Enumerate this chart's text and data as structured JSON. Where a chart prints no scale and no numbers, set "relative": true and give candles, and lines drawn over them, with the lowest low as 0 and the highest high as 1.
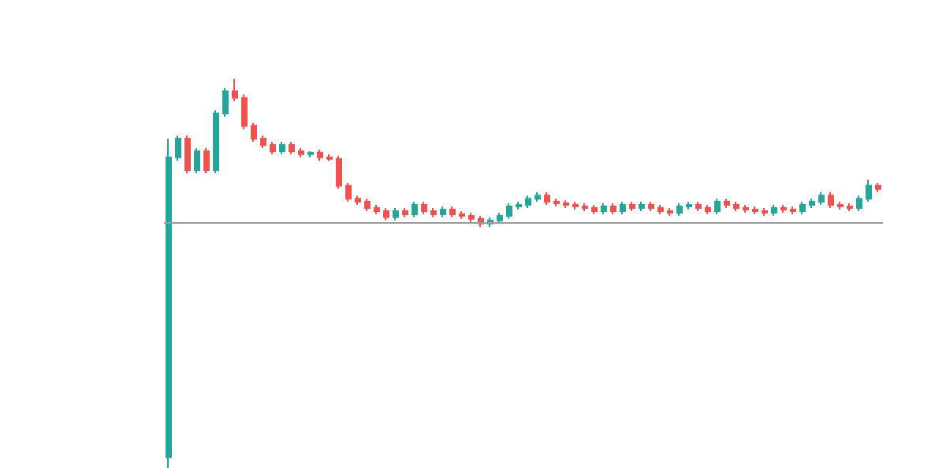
{
  "chart_data": {
    "type": "candlestick",
    "relative": true,
    "categories": [
      null,
      null,
      null,
      null,
      null,
      null,
      null,
      null,
      null,
      null,
      null,
      null,
      null,
      null,
      null,
      null,
      null,
      null,
      null,
      null,
      null,
      null,
      null,
      null,
      null,
      null,
      null,
      null,
      null,
      null,
      null,
      null,
      null,
      null,
      null,
      null,
      null,
      null,
      null,
      null,
      null,
      null,
      null,
      null,
      null,
      null,
      null,
      null,
      null,
      null,
      null,
      null,
      null,
      null,
      null,
      null,
      null,
      null,
      null,
      null,
      null,
      null,
      null,
      null,
      null,
      null,
      null,
      null,
      null,
      null,
      null,
      null,
      null,
      null,
      null,
      null
    ],
    "ohlc": [
      [
        0.028,
        0.846,
        0,
        0.798
      ],
      [
        0.798,
        0.854,
        0.789,
        0.846
      ],
      [
        0.846,
        0.854,
        0.757,
        0.765
      ],
      [
        0.765,
        0.822,
        0.757,
        0.814
      ],
      [
        0.814,
        0.822,
        0.757,
        0.765
      ],
      [
        0.765,
        0.919,
        0.757,
        0.911
      ],
      [
        0.911,
        0.976,
        0.903,
        0.968
      ],
      [
        0.968,
        1.0,
        0.943,
        0.951
      ],
      [
        0.951,
        0.96,
        0.87,
        0.879
      ],
      [
        0.879,
        0.887,
        0.838,
        0.846
      ],
      [
        0.846,
        0.854,
        0.822,
        0.83
      ],
      [
        0.83,
        0.838,
        0.806,
        0.814
      ],
      [
        0.814,
        0.838,
        0.806,
        0.83
      ],
      [
        0.83,
        0.838,
        0.806,
        0.814
      ],
      [
        0.814,
        0.822,
        0.798,
        0.806
      ],
      [
        0.806,
        0.814,
        0.798,
        0.81
      ],
      [
        0.81,
        0.818,
        0.789,
        0.798
      ],
      [
        0.798,
        0.806,
        0.789,
        0.794
      ],
      [
        0.794,
        0.802,
        0.717,
        0.725
      ],
      [
        0.725,
        0.733,
        0.684,
        0.692
      ],
      [
        0.692,
        0.7,
        0.676,
        0.684
      ],
      [
        0.684,
        0.692,
        0.66,
        0.668
      ],
      [
        0.668,
        0.676,
        0.652,
        0.66
      ],
      [
        0.66,
        0.668,
        0.636,
        0.644
      ],
      [
        0.644,
        0.668,
        0.636,
        0.66
      ],
      [
        0.66,
        0.668,
        0.644,
        0.652
      ],
      [
        0.652,
        0.684,
        0.644,
        0.676
      ],
      [
        0.676,
        0.684,
        0.652,
        0.66
      ],
      [
        0.66,
        0.668,
        0.644,
        0.652
      ],
      [
        0.652,
        0.672,
        0.644,
        0.664
      ],
      [
        0.664,
        0.672,
        0.644,
        0.652
      ],
      [
        0.652,
        0.66,
        0.64,
        0.648
      ],
      [
        0.648,
        0.656,
        0.632,
        0.64
      ],
      [
        0.64,
        0.648,
        0.619,
        0.628
      ],
      [
        0.628,
        0.644,
        0.619,
        0.636
      ],
      [
        0.636,
        0.656,
        0.628,
        0.648
      ],
      [
        0.648,
        0.68,
        0.64,
        0.672
      ],
      [
        0.672,
        0.684,
        0.664,
        0.676
      ],
      [
        0.676,
        0.7,
        0.668,
        0.692
      ],
      [
        0.692,
        0.709,
        0.684,
        0.7
      ],
      [
        0.7,
        0.709,
        0.676,
        0.684
      ],
      [
        0.684,
        0.692,
        0.672,
        0.68
      ],
      [
        0.68,
        0.688,
        0.668,
        0.676
      ],
      [
        0.676,
        0.684,
        0.664,
        0.672
      ],
      [
        0.672,
        0.68,
        0.66,
        0.668
      ],
      [
        0.668,
        0.676,
        0.652,
        0.66
      ],
      [
        0.66,
        0.68,
        0.652,
        0.672
      ],
      [
        0.672,
        0.68,
        0.652,
        0.66
      ],
      [
        0.66,
        0.684,
        0.652,
        0.676
      ],
      [
        0.676,
        0.684,
        0.66,
        0.668
      ],
      [
        0.668,
        0.684,
        0.66,
        0.676
      ],
      [
        0.676,
        0.684,
        0.66,
        0.668
      ],
      [
        0.668,
        0.676,
        0.652,
        0.66
      ],
      [
        0.66,
        0.668,
        0.648,
        0.656
      ],
      [
        0.656,
        0.68,
        0.648,
        0.672
      ],
      [
        0.672,
        0.684,
        0.664,
        0.676
      ],
      [
        0.676,
        0.684,
        0.66,
        0.668
      ],
      [
        0.668,
        0.676,
        0.652,
        0.66
      ],
      [
        0.66,
        0.692,
        0.652,
        0.684
      ],
      [
        0.684,
        0.692,
        0.668,
        0.676
      ],
      [
        0.676,
        0.684,
        0.66,
        0.668
      ],
      [
        0.668,
        0.676,
        0.656,
        0.664
      ],
      [
        0.664,
        0.672,
        0.652,
        0.66
      ],
      [
        0.66,
        0.668,
        0.648,
        0.656
      ],
      [
        0.656,
        0.676,
        0.648,
        0.668
      ],
      [
        0.668,
        0.676,
        0.656,
        0.664
      ],
      [
        0.664,
        0.672,
        0.652,
        0.66
      ],
      [
        0.66,
        0.684,
        0.652,
        0.676
      ],
      [
        0.676,
        0.692,
        0.668,
        0.684
      ],
      [
        0.684,
        0.709,
        0.676,
        0.7
      ],
      [
        0.7,
        0.709,
        0.668,
        0.676
      ],
      [
        0.676,
        0.684,
        0.664,
        0.672
      ],
      [
        0.672,
        0.68,
        0.66,
        0.668
      ],
      [
        0.668,
        0.7,
        0.66,
        0.692
      ],
      [
        0.692,
        0.741,
        0.684,
        0.725
      ],
      [
        0.725,
        0.733,
        0.709,
        0.717
      ]
    ],
    "colors": [
      "#26a69a",
      "#26a69a",
      "#ef5350",
      "#26a69a",
      "#ef5350",
      "#26a69a",
      "#26a69a",
      "#ef5350",
      "#ef5350",
      "#ef5350",
      "#ef5350",
      "#ef5350",
      "#26a69a",
      "#ef5350",
      "#ef5350",
      "#26a69a",
      "#ef5350",
      "#ef5350",
      "#ef5350",
      "#ef5350",
      "#ef5350",
      "#ef5350",
      "#ef5350",
      "#ef5350",
      "#26a69a",
      "#ef5350",
      "#26a69a",
      "#ef5350",
      "#ef5350",
      "#26a69a",
      "#ef5350",
      "#ef5350",
      "#ef5350",
      "#ef5350",
      "#26a69a",
      "#26a69a",
      "#26a69a",
      "#26a69a",
      "#26a69a",
      "#26a69a",
      "#ef5350",
      "#ef5350",
      "#ef5350",
      "#ef5350",
      "#ef5350",
      "#ef5350",
      "#26a69a",
      "#ef5350",
      "#26a69a",
      "#ef5350",
      "#26a69a",
      "#ef5350",
      "#ef5350",
      "#ef5350",
      "#26a69a",
      "#26a69a",
      "#ef5350",
      "#ef5350",
      "#26a69a",
      "#ef5350",
      "#ef5350",
      "#ef5350",
      "#ef5350",
      "#ef5350",
      "#26a69a",
      "#ef5350",
      "#ef5350",
      "#26a69a",
      "#26a69a",
      "#26a69a",
      "#ef5350",
      "#ef5350",
      "#ef5350",
      "#26a69a",
      "#26a69a",
      "#ef5350"
    ],
    "ref_lines": [
      {
        "axis": "y",
        "value": 0.632,
        "color": "#9e9e9e"
      }
    ]
  }
}
